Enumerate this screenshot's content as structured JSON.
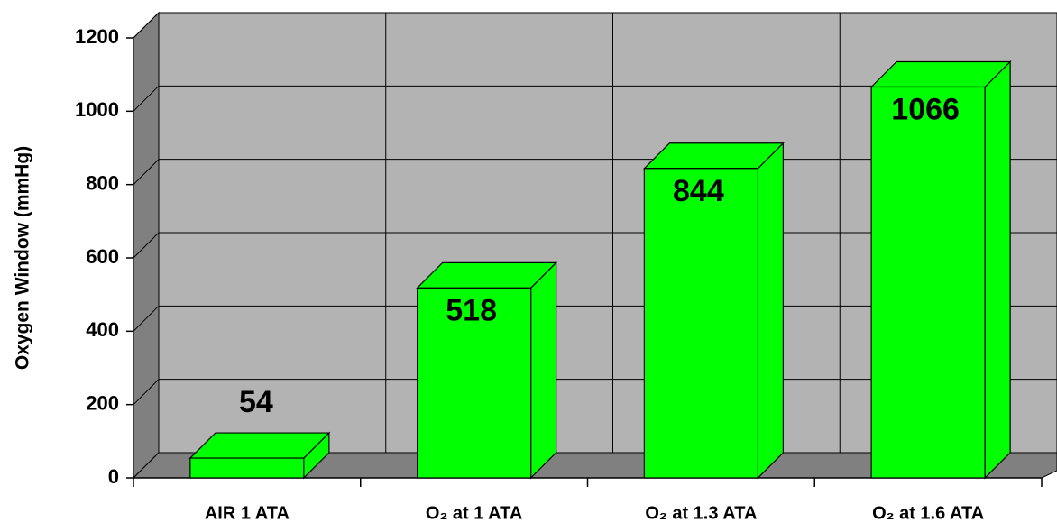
{
  "chart_data": {
    "type": "bar3d",
    "y_label": "Oxygen Window (mmHg)",
    "categories": [
      "AIR 1 ATA",
      "O₂ at 1 ATA",
      "O₂ at 1.3 ATA",
      "O₂ at 1.6 ATA"
    ],
    "values": [
      54,
      518,
      844,
      1066
    ],
    "color": "#00ff00",
    "ylim": [
      0,
      1200
    ],
    "yticks": [
      0,
      200,
      400,
      600,
      800,
      1000,
      1200
    ],
    "grid": true
  }
}
